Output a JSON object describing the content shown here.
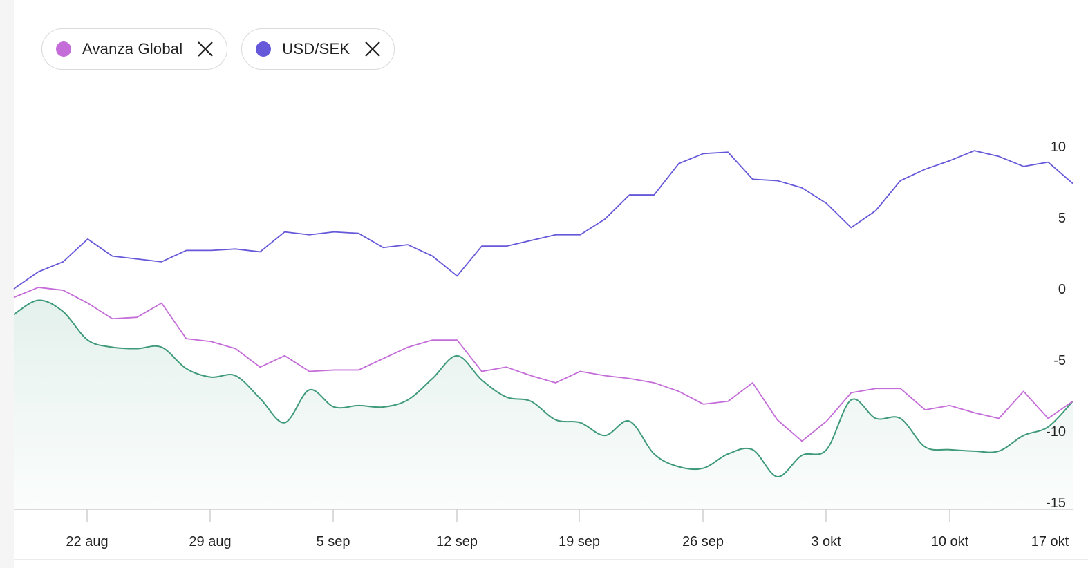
{
  "legend": [
    {
      "label": "Avanza Global",
      "color": "#c46cd8"
    },
    {
      "label": "USD/SEK",
      "color": "#6558d9"
    }
  ],
  "chart_data": {
    "type": "line",
    "ylim": [
      -15,
      10
    ],
    "y_ticks": [
      "10",
      "5",
      "0",
      "-5",
      "-10",
      "-15"
    ],
    "x_ticks": [
      "22 aug",
      "29 aug",
      "5 sep",
      "12 sep",
      "19 sep",
      "26 sep",
      "3 okt",
      "10 okt",
      "17 okt"
    ],
    "grid": false,
    "series": [
      {
        "name": "USD/SEK",
        "color": "#6558d9",
        "values": [
          0.0,
          1.2,
          1.9,
          3.5,
          2.3,
          2.1,
          1.9,
          2.7,
          2.7,
          2.8,
          2.6,
          4.0,
          3.8,
          4.0,
          3.9,
          2.9,
          3.1,
          2.3,
          0.9,
          3.0,
          3.0,
          3.4,
          3.8,
          3.8,
          4.9,
          6.6,
          6.6,
          8.8,
          9.5,
          9.6,
          7.7,
          7.6,
          7.1,
          6.0,
          4.3,
          5.5,
          7.6,
          8.4,
          9.0,
          9.7,
          9.3,
          8.6,
          8.9,
          7.4
        ]
      },
      {
        "name": "Avanza Global",
        "color": "#c46cd8",
        "values": [
          -0.6,
          0.1,
          -0.1,
          -1.0,
          -2.1,
          -2.0,
          -1.0,
          -3.5,
          -3.7,
          -4.2,
          -5.5,
          -4.7,
          -5.8,
          -5.7,
          -5.7,
          -4.9,
          -4.1,
          -3.6,
          -3.6,
          -5.8,
          -5.5,
          -6.1,
          -6.6,
          -5.8,
          -6.1,
          -6.3,
          -6.6,
          -7.2,
          -8.1,
          -7.9,
          -6.6,
          -9.2,
          -10.7,
          -9.3,
          -7.3,
          -7.0,
          -7.0,
          -8.5,
          -8.2,
          -8.7,
          -9.1,
          -7.2,
          -9.1,
          -7.9
        ]
      },
      {
        "name": "",
        "color": "#3e9a78",
        "values": [
          -1.8,
          -0.8,
          -1.6,
          -3.6,
          -4.1,
          -4.2,
          -4.1,
          -5.6,
          -6.2,
          -6.1,
          -7.7,
          -9.4,
          -7.1,
          -8.3,
          -8.2,
          -8.3,
          -7.8,
          -6.3,
          -4.7,
          -6.4,
          -7.6,
          -7.9,
          -9.2,
          -9.4,
          -10.3,
          -9.3,
          -11.6,
          -12.5,
          -12.6,
          -11.6,
          -11.3,
          -13.2,
          -11.7,
          -11.3,
          -7.8,
          -9.1,
          -9.1,
          -11.1,
          -11.3,
          -11.4,
          -11.4,
          -10.3,
          -9.7,
          -7.9
        ]
      }
    ]
  }
}
